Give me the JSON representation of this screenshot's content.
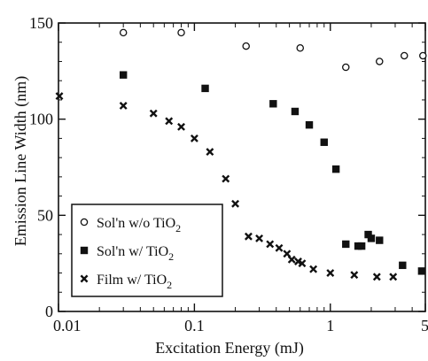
{
  "chart_data": {
    "type": "scatter",
    "xscale": "log",
    "xlim": [
      0.01,
      5
    ],
    "ylim": [
      0,
      150
    ],
    "xlabel": "Excitation Energy (mJ)",
    "ylabel": "Emission Line Width (nm)",
    "x_ticks": [
      0.01,
      0.1,
      1,
      5
    ],
    "x_tick_labels": [
      "0.01",
      "0.1",
      "1",
      "5"
    ],
    "y_ticks": [
      0,
      50,
      100,
      150
    ],
    "y_tick_labels": [
      "0",
      "50",
      "100",
      "150"
    ],
    "grid": false,
    "legend_position": "bottom-left",
    "series": [
      {
        "name": "Sol'n w/o TiO2",
        "marker": "open-circle",
        "x": [
          0.03,
          0.08,
          0.24,
          0.6,
          1.3,
          2.3,
          3.5,
          4.8
        ],
        "y": [
          145,
          145,
          138,
          137,
          127,
          130,
          133,
          133
        ]
      },
      {
        "name": "Sol'n w/ TiO2",
        "marker": "filled-square",
        "x": [
          0.03,
          0.12,
          0.38,
          0.55,
          0.7,
          0.9,
          1.1,
          1.3,
          1.6,
          1.7,
          1.9,
          2.0,
          2.3,
          3.4,
          4.7
        ],
        "y": [
          123,
          116,
          108,
          104,
          97,
          88,
          74,
          35,
          34,
          34,
          40,
          38,
          37,
          24,
          21
        ]
      },
      {
        "name": "Film w/ TiO2",
        "marker": "x",
        "x": [
          0.01,
          0.03,
          0.05,
          0.065,
          0.08,
          0.1,
          0.13,
          0.17,
          0.2,
          0.25,
          0.3,
          0.36,
          0.42,
          0.48,
          0.52,
          0.58,
          0.62,
          0.75,
          1.0,
          1.5,
          2.2,
          2.9
        ],
        "y": [
          112,
          107,
          103,
          99,
          96,
          90,
          83,
          69,
          56,
          39,
          38,
          35,
          33,
          30,
          27,
          26,
          25,
          22,
          20,
          19,
          18,
          18
        ]
      }
    ]
  },
  "legend": {
    "items": [
      {
        "marker": "open-circle",
        "text": "Sol'n w/o TiO",
        "sub": "2"
      },
      {
        "marker": "filled-square",
        "text": "Sol'n w/  TiO",
        "sub": "2"
      },
      {
        "marker": "x",
        "text": "Film w/  TiO",
        "sub": "2"
      }
    ]
  }
}
